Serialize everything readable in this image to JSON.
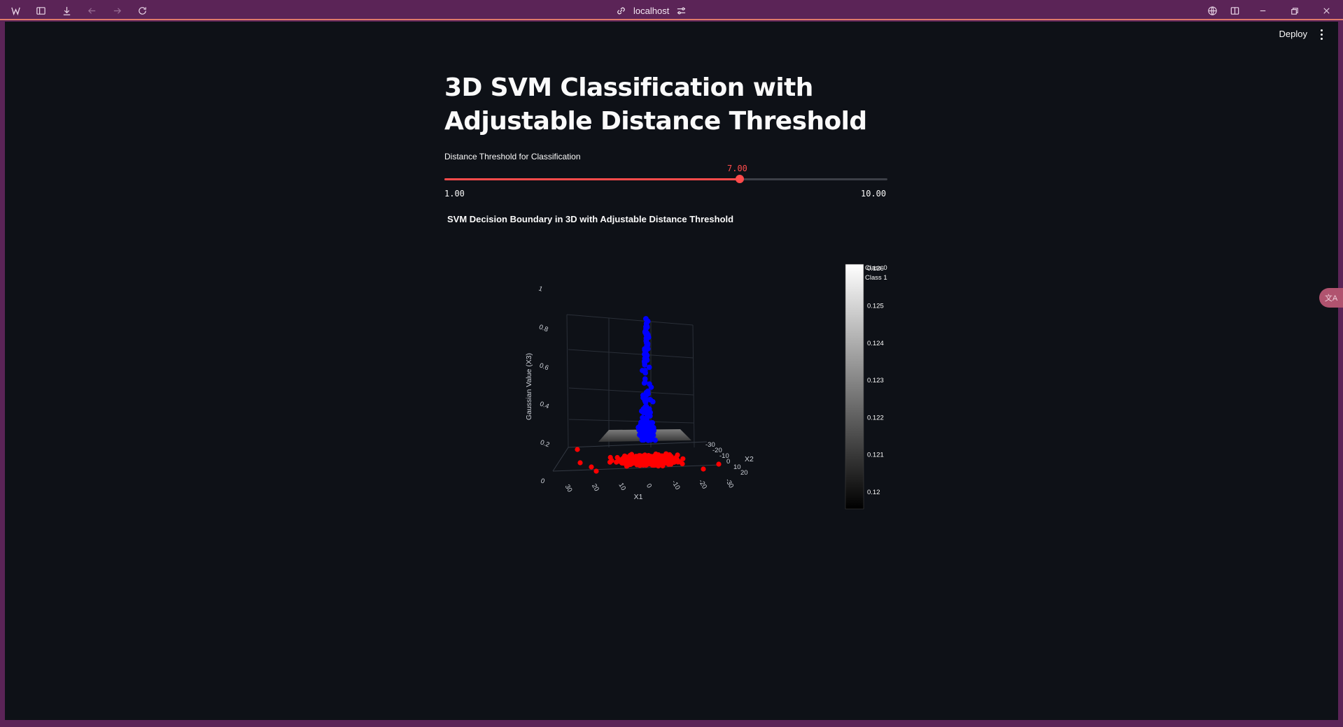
{
  "browser": {
    "url": "localhost"
  },
  "header": {
    "deploy_label": "Deploy"
  },
  "page": {
    "title": "3D SVM Classification with Adjustable Distance Threshold"
  },
  "slider": {
    "label": "Distance Threshold for Classification",
    "value": 7.0,
    "value_text": "7.00",
    "min": 1.0,
    "min_text": "1.00",
    "max": 10.0,
    "max_text": "10.00",
    "accent": "#ff4b4b"
  },
  "chart_data": {
    "type": "scatter",
    "title": "SVM Decision Boundary in 3D with Adjustable Distance Threshold",
    "axes": {
      "x": {
        "label": "X1",
        "ticks": [
          "30",
          "20",
          "10",
          "0",
          "-10",
          "-20",
          "-30"
        ]
      },
      "y": {
        "label": "X2",
        "ticks": [
          "-30",
          "-20",
          "-10",
          "0",
          "10",
          "20"
        ]
      },
      "z": {
        "label": "Gaussian Value (X3)",
        "ticks": [
          "0",
          "0.2",
          "0.4",
          "0.6",
          "0.8",
          "1"
        ]
      }
    },
    "series": [
      {
        "name": "Class 0",
        "color": "#ff0000",
        "region": "near z = 0, spread x,y in [-30, 30]"
      },
      {
        "name": "Class 1",
        "color": "#0000ff",
        "region": "narrow column near x,y = 0, z up to 1"
      }
    ],
    "surface": {
      "colorscale": "greys",
      "colorbar_ticks": [
        "0.12",
        "0.121",
        "0.122",
        "0.123",
        "0.124",
        "0.125",
        "0.126"
      ]
    },
    "legend_placement": "top-right"
  }
}
